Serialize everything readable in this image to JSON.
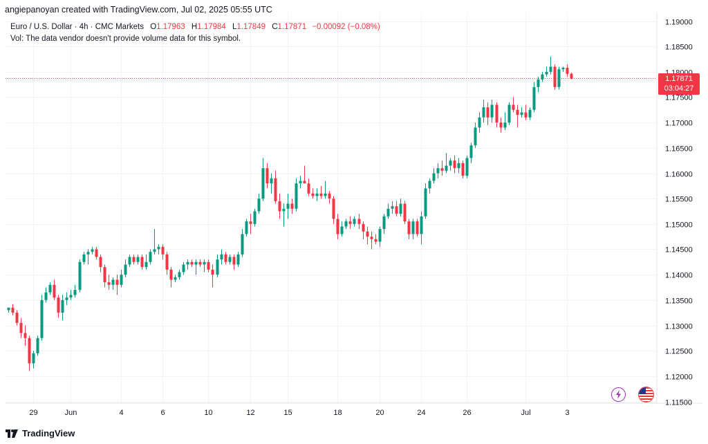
{
  "header": {
    "credit": "angiepanoyan created with TradingView.com, Jul 02, 2025 05:55 UTC",
    "symbol": "Euro / U.S. Dollar · 4h · CMC Markets",
    "open_label": "O",
    "open": "1.17963",
    "high_label": "H",
    "high": "1.17984",
    "low_label": "L",
    "low": "1.17849",
    "close_label": "C",
    "close": "1.17871",
    "change": "−0.00092 (−0.08%)",
    "volume_note": "Vol: The data vendor doesn't provide volume data for this symbol."
  },
  "price_tag": {
    "price": "1.17871",
    "countdown": "03:04:27"
  },
  "footer": {
    "brand": "TradingView"
  },
  "icons": [
    "tradingview-logo-icon",
    "lightning-event-icon",
    "us-flag-event-icon"
  ],
  "colors": {
    "up": "#089981",
    "down": "#f23645",
    "grid": "#f0f3fa",
    "axis_text": "#131722"
  },
  "chart_data": {
    "type": "candlestick",
    "title": "Euro / U.S. Dollar · 4h · CMC Markets",
    "ylim": [
      1.115,
      1.19
    ],
    "y_ticks": [
      "1.19000",
      "1.18500",
      "1.18000",
      "1.17500",
      "1.17000",
      "1.16500",
      "1.16000",
      "1.15500",
      "1.15000",
      "1.14500",
      "1.14000",
      "1.13500",
      "1.13000",
      "1.12500",
      "1.12000",
      "1.11500"
    ],
    "x_labels": [
      {
        "i": 6,
        "text": "29"
      },
      {
        "i": 15,
        "text": "Jun"
      },
      {
        "i": 27,
        "text": "4"
      },
      {
        "i": 37,
        "text": "6"
      },
      {
        "i": 48,
        "text": "10"
      },
      {
        "i": 58,
        "text": "12"
      },
      {
        "i": 67,
        "text": "15"
      },
      {
        "i": 79,
        "text": "18"
      },
      {
        "i": 89,
        "text": "20"
      },
      {
        "i": 99,
        "text": "24"
      },
      {
        "i": 110,
        "text": "26"
      },
      {
        "i": 124,
        "text": "Jul"
      },
      {
        "i": 134,
        "text": "3"
      }
    ],
    "last_price": 1.17871,
    "candles": [
      [
        1.133,
        1.1335,
        1.1325,
        1.1335
      ],
      [
        1.1335,
        1.1342,
        1.132,
        1.1325
      ],
      [
        1.1325,
        1.133,
        1.13,
        1.1305
      ],
      [
        1.1305,
        1.1315,
        1.1275,
        1.1285
      ],
      [
        1.1285,
        1.13,
        1.126,
        1.1275
      ],
      [
        1.1275,
        1.128,
        1.121,
        1.1225
      ],
      [
        1.1225,
        1.125,
        1.1215,
        1.1245
      ],
      [
        1.1245,
        1.128,
        1.124,
        1.1275
      ],
      [
        1.1275,
        1.136,
        1.127,
        1.135
      ],
      [
        1.135,
        1.1375,
        1.1345,
        1.1365
      ],
      [
        1.1365,
        1.1385,
        1.136,
        1.138
      ],
      [
        1.138,
        1.139,
        1.135,
        1.1355
      ],
      [
        1.1355,
        1.136,
        1.1315,
        1.1325
      ],
      [
        1.1325,
        1.136,
        1.131,
        1.135
      ],
      [
        1.135,
        1.1365,
        1.134,
        1.1355
      ],
      [
        1.1355,
        1.137,
        1.135,
        1.136
      ],
      [
        1.136,
        1.138,
        1.1355,
        1.137
      ],
      [
        1.137,
        1.143,
        1.1365,
        1.1425
      ],
      [
        1.1425,
        1.1445,
        1.142,
        1.144
      ],
      [
        1.144,
        1.145,
        1.142,
        1.1445
      ],
      [
        1.1445,
        1.1455,
        1.144,
        1.145
      ],
      [
        1.145,
        1.1455,
        1.143,
        1.1435
      ],
      [
        1.1435,
        1.144,
        1.1405,
        1.1415
      ],
      [
        1.1415,
        1.142,
        1.1375,
        1.1385
      ],
      [
        1.1385,
        1.14,
        1.137,
        1.138
      ],
      [
        1.138,
        1.1395,
        1.137,
        1.139
      ],
      [
        1.139,
        1.14,
        1.136,
        1.138
      ],
      [
        1.138,
        1.141,
        1.1375,
        1.14
      ],
      [
        1.14,
        1.143,
        1.1395,
        1.142
      ],
      [
        1.142,
        1.144,
        1.1415,
        1.1435
      ],
      [
        1.1435,
        1.144,
        1.142,
        1.1425
      ],
      [
        1.1425,
        1.144,
        1.142,
        1.1435
      ],
      [
        1.1435,
        1.144,
        1.141,
        1.1415
      ],
      [
        1.1415,
        1.144,
        1.141,
        1.1425
      ],
      [
        1.1425,
        1.145,
        1.142,
        1.1445
      ],
      [
        1.1445,
        1.149,
        1.144,
        1.145
      ],
      [
        1.145,
        1.146,
        1.144,
        1.1455
      ],
      [
        1.1455,
        1.146,
        1.143,
        1.144
      ],
      [
        1.144,
        1.1445,
        1.14,
        1.141
      ],
      [
        1.141,
        1.1415,
        1.1375,
        1.139
      ],
      [
        1.139,
        1.14,
        1.1385,
        1.1395
      ],
      [
        1.1395,
        1.141,
        1.139,
        1.1405
      ],
      [
        1.1405,
        1.1425,
        1.14,
        1.142
      ],
      [
        1.142,
        1.143,
        1.141,
        1.1425
      ],
      [
        1.1425,
        1.143,
        1.1415,
        1.142
      ],
      [
        1.142,
        1.143,
        1.14,
        1.1425
      ],
      [
        1.1425,
        1.143,
        1.1415,
        1.142
      ],
      [
        1.142,
        1.143,
        1.1405,
        1.1425
      ],
      [
        1.1425,
        1.143,
        1.1405,
        1.141
      ],
      [
        1.141,
        1.142,
        1.1375,
        1.14
      ],
      [
        1.14,
        1.144,
        1.1395,
        1.143
      ],
      [
        1.143,
        1.145,
        1.142,
        1.144
      ],
      [
        1.144,
        1.1445,
        1.142,
        1.1425
      ],
      [
        1.1425,
        1.144,
        1.142,
        1.1435
      ],
      [
        1.1435,
        1.144,
        1.141,
        1.142
      ],
      [
        1.142,
        1.1445,
        1.1415,
        1.144
      ],
      [
        1.144,
        1.149,
        1.1435,
        1.148
      ],
      [
        1.148,
        1.151,
        1.1475,
        1.1505
      ],
      [
        1.1505,
        1.152,
        1.148,
        1.15
      ],
      [
        1.15,
        1.153,
        1.1495,
        1.1525
      ],
      [
        1.1525,
        1.156,
        1.152,
        1.155
      ],
      [
        1.155,
        1.163,
        1.1545,
        1.161
      ],
      [
        1.161,
        1.162,
        1.157,
        1.158
      ],
      [
        1.158,
        1.16,
        1.156,
        1.159
      ],
      [
        1.159,
        1.1605,
        1.154,
        1.1545
      ],
      [
        1.1545,
        1.156,
        1.151,
        1.1525
      ],
      [
        1.1525,
        1.154,
        1.1495,
        1.153
      ],
      [
        1.153,
        1.156,
        1.151,
        1.154
      ],
      [
        1.154,
        1.155,
        1.152,
        1.153
      ],
      [
        1.153,
        1.159,
        1.1525,
        1.158
      ],
      [
        1.158,
        1.1595,
        1.157,
        1.1585
      ],
      [
        1.1585,
        1.1615,
        1.158,
        1.158
      ],
      [
        1.158,
        1.159,
        1.1555,
        1.156
      ],
      [
        1.156,
        1.157,
        1.155,
        1.1555
      ],
      [
        1.1555,
        1.157,
        1.1545,
        1.156
      ],
      [
        1.156,
        1.1575,
        1.155,
        1.1555
      ],
      [
        1.1555,
        1.1585,
        1.155,
        1.156
      ],
      [
        1.156,
        1.1565,
        1.154,
        1.155
      ],
      [
        1.155,
        1.1555,
        1.15,
        1.151
      ],
      [
        1.151,
        1.152,
        1.147,
        1.148
      ],
      [
        1.148,
        1.1505,
        1.1475,
        1.1495
      ],
      [
        1.1495,
        1.151,
        1.149,
        1.1505
      ],
      [
        1.1505,
        1.1515,
        1.149,
        1.15
      ],
      [
        1.15,
        1.1515,
        1.1495,
        1.151
      ],
      [
        1.151,
        1.152,
        1.149,
        1.15
      ],
      [
        1.15,
        1.1505,
        1.147,
        1.1485
      ],
      [
        1.1485,
        1.1495,
        1.146,
        1.1475
      ],
      [
        1.1475,
        1.1485,
        1.145,
        1.147
      ],
      [
        1.147,
        1.148,
        1.146,
        1.1465
      ],
      [
        1.1465,
        1.1495,
        1.1455,
        1.149
      ],
      [
        1.149,
        1.152,
        1.148,
        1.1515
      ],
      [
        1.1515,
        1.154,
        1.151,
        1.153
      ],
      [
        1.153,
        1.1545,
        1.152,
        1.1535
      ],
      [
        1.1535,
        1.1545,
        1.1515,
        1.152
      ],
      [
        1.152,
        1.155,
        1.1515,
        1.154
      ],
      [
        1.154,
        1.1545,
        1.15,
        1.1505
      ],
      [
        1.1505,
        1.151,
        1.147,
        1.148
      ],
      [
        1.148,
        1.151,
        1.147,
        1.1505
      ],
      [
        1.1505,
        1.151,
        1.1475,
        1.148
      ],
      [
        1.148,
        1.1525,
        1.146,
        1.1515
      ],
      [
        1.1515,
        1.158,
        1.151,
        1.157
      ],
      [
        1.157,
        1.159,
        1.156,
        1.1585
      ],
      [
        1.1585,
        1.161,
        1.158,
        1.16
      ],
      [
        1.16,
        1.162,
        1.159,
        1.161
      ],
      [
        1.161,
        1.1625,
        1.1595,
        1.1605
      ],
      [
        1.1605,
        1.164,
        1.16,
        1.1615
      ],
      [
        1.1615,
        1.163,
        1.1605,
        1.1625
      ],
      [
        1.1625,
        1.1635,
        1.16,
        1.161
      ],
      [
        1.161,
        1.163,
        1.16,
        1.162
      ],
      [
        1.162,
        1.1625,
        1.159,
        1.1595
      ],
      [
        1.1595,
        1.1635,
        1.159,
        1.163
      ],
      [
        1.163,
        1.166,
        1.162,
        1.1655
      ],
      [
        1.1655,
        1.17,
        1.165,
        1.169
      ],
      [
        1.169,
        1.172,
        1.168,
        1.171
      ],
      [
        1.171,
        1.1745,
        1.17,
        1.173
      ],
      [
        1.173,
        1.174,
        1.1695,
        1.171
      ],
      [
        1.171,
        1.1745,
        1.17,
        1.1735
      ],
      [
        1.1735,
        1.174,
        1.169,
        1.17
      ],
      [
        1.17,
        1.171,
        1.168,
        1.169
      ],
      [
        1.169,
        1.172,
        1.1685,
        1.17
      ],
      [
        1.17,
        1.174,
        1.1695,
        1.1735
      ],
      [
        1.1735,
        1.175,
        1.172,
        1.1725
      ],
      [
        1.1725,
        1.1735,
        1.169,
        1.1715
      ],
      [
        1.1715,
        1.173,
        1.171,
        1.172
      ],
      [
        1.172,
        1.1735,
        1.1705,
        1.171
      ],
      [
        1.171,
        1.173,
        1.1705,
        1.1725
      ],
      [
        1.1725,
        1.178,
        1.172,
        1.177
      ],
      [
        1.177,
        1.179,
        1.176,
        1.1785
      ],
      [
        1.1785,
        1.18,
        1.178,
        1.1795
      ],
      [
        1.1795,
        1.181,
        1.179,
        1.18
      ],
      [
        1.18,
        1.183,
        1.1795,
        1.181
      ],
      [
        1.181,
        1.1815,
        1.1765,
        1.177
      ],
      [
        1.177,
        1.181,
        1.1765,
        1.1805
      ],
      [
        1.1805,
        1.181,
        1.18,
        1.1808
      ],
      [
        1.1808,
        1.1815,
        1.179,
        1.1796
      ],
      [
        1.17963,
        1.17984,
        1.17849,
        1.17871
      ]
    ]
  }
}
